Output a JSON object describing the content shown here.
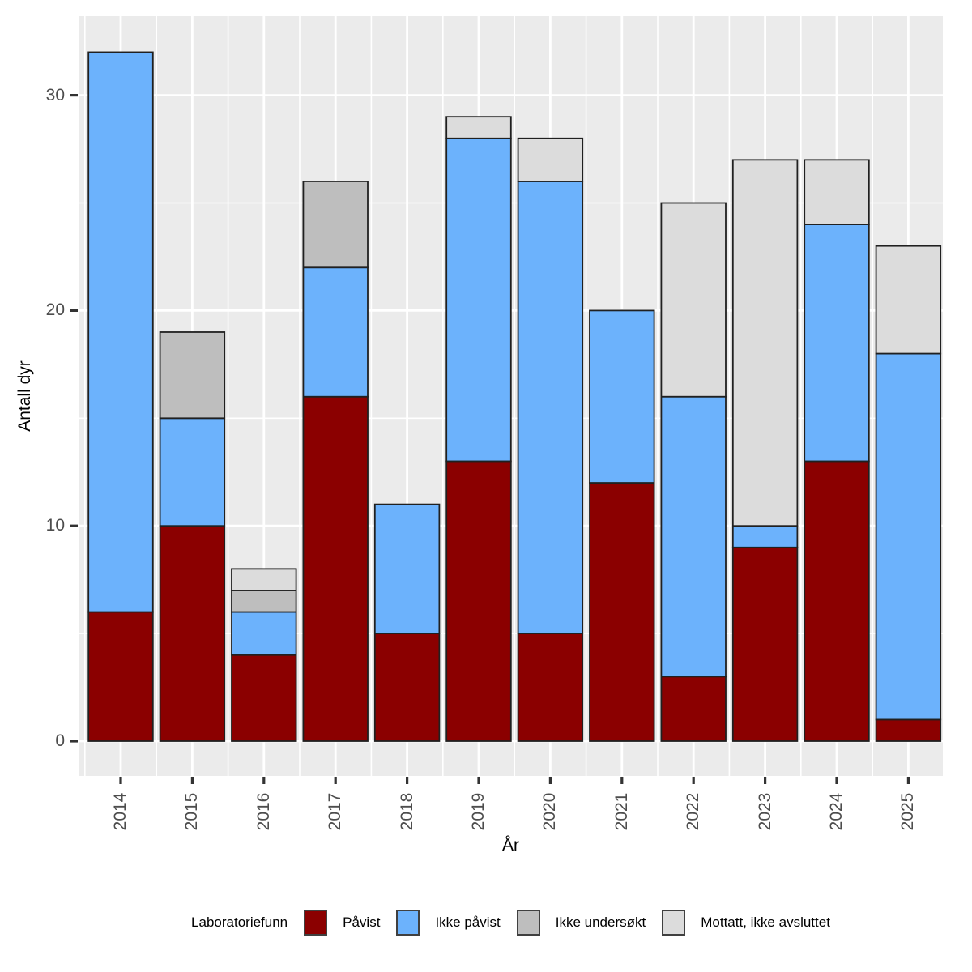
{
  "chart_data": {
    "type": "bar",
    "stacked": true,
    "title": "",
    "xlabel": "År",
    "ylabel": "Antall dyr",
    "categories": [
      "2014",
      "2015",
      "2016",
      "2017",
      "2018",
      "2019",
      "2020",
      "2021",
      "2022",
      "2023",
      "2024",
      "2025"
    ],
    "series": [
      {
        "name": "Påvist",
        "color": "#8B0000",
        "values": [
          6,
          10,
          4,
          16,
          5,
          13,
          5,
          12,
          3,
          9,
          13,
          1
        ]
      },
      {
        "name": "Ikke påvist",
        "color": "#6CB2FC",
        "values": [
          26,
          5,
          2,
          6,
          6,
          15,
          21,
          8,
          13,
          1,
          11,
          17
        ]
      },
      {
        "name": "Ikke undersøkt",
        "color": "#BEBEBE",
        "values": [
          0,
          4,
          1,
          4,
          0,
          0,
          0,
          0,
          0,
          0,
          0,
          0
        ]
      },
      {
        "name": "Mottatt, ikke avsluttet",
        "color": "#DCDCDC",
        "values": [
          0,
          0,
          1,
          0,
          0,
          1,
          2,
          0,
          9,
          17,
          3,
          5
        ]
      }
    ],
    "stack_totals": [
      32,
      19,
      8,
      26,
      11,
      29,
      28,
      20,
      25,
      27,
      27,
      23
    ],
    "y_ticks": [
      0,
      10,
      20,
      30
    ],
    "y_tick_labels": [
      "0",
      "10",
      "20",
      "30"
    ],
    "y_minor_ticks": [
      5,
      15,
      25
    ],
    "ylim": [
      0,
      33.7
    ],
    "grid": true,
    "legend_position": "bottom",
    "legend_title": "Laboratoriefunn"
  },
  "colors": {
    "panel_bg": "#EBEBEB",
    "gridline": "#FFFFFF",
    "bar_border": "#202020",
    "axis_tick": "#333333",
    "axis_text": "#4D4D4D",
    "axis_title": "#000000",
    "swatch_border": "#404040"
  }
}
